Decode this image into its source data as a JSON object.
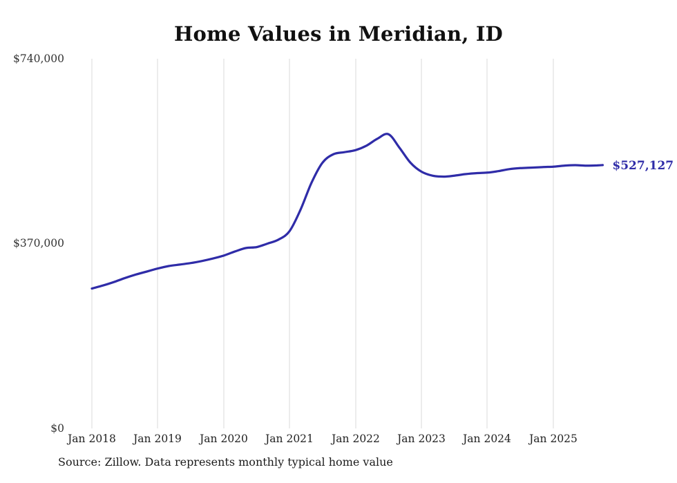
{
  "title": "Home Values in Meridian, ID",
  "source_note": "Source: Zillow. Data represents monthly typical home value",
  "end_label": "$527,127",
  "colors": {
    "line": "#2f2ca8",
    "end_label": "#2f2ca8",
    "grid": "#d8d8d8",
    "axis_text": "#333333",
    "title_text": "#111111"
  },
  "y_axis": {
    "ticks": [
      "$740,000",
      "$370,000",
      "$0"
    ],
    "tick_values": [
      740000,
      370000,
      0
    ]
  },
  "x_axis": {
    "ticks": [
      "Jan 2018",
      "Jan 2019",
      "Jan 2020",
      "Jan 2021",
      "Jan 2022",
      "Jan 2023",
      "Jan 2024",
      "Jan 2025"
    ]
  },
  "chart_data": {
    "type": "line",
    "title": "Home Values in Meridian, ID",
    "xlabel": "",
    "ylabel": "",
    "ylim": [
      0,
      740000
    ],
    "grid": "vertical",
    "legend": "none",
    "series_name": "Monthly typical home value",
    "x": [
      "2018-01",
      "2018-03",
      "2018-05",
      "2018-07",
      "2018-09",
      "2018-11",
      "2019-01",
      "2019-03",
      "2019-05",
      "2019-07",
      "2019-09",
      "2019-11",
      "2020-01",
      "2020-03",
      "2020-05",
      "2020-07",
      "2020-09",
      "2020-11",
      "2021-01",
      "2021-03",
      "2021-05",
      "2021-07",
      "2021-09",
      "2021-11",
      "2022-01",
      "2022-03",
      "2022-05",
      "2022-07",
      "2022-09",
      "2022-11",
      "2023-01",
      "2023-03",
      "2023-05",
      "2023-07",
      "2023-09",
      "2023-11",
      "2024-01",
      "2024-03",
      "2024-05",
      "2024-07",
      "2024-09",
      "2024-11",
      "2025-01",
      "2025-03",
      "2025-05",
      "2025-07",
      "2025-09",
      "2025-10"
    ],
    "values": [
      280000,
      286000,
      293000,
      301000,
      308000,
      314000,
      320000,
      325000,
      328000,
      331000,
      335000,
      340000,
      346000,
      354000,
      361000,
      363000,
      370000,
      378000,
      395000,
      438000,
      492000,
      532000,
      549000,
      553000,
      557000,
      566000,
      580000,
      589000,
      562000,
      532000,
      514000,
      506000,
      504000,
      506000,
      509000,
      511000,
      512000,
      515000,
      519000,
      521000,
      522000,
      523000,
      524000,
      526000,
      527000,
      526000,
      526500,
      527127
    ],
    "final_value": 527127,
    "final_value_label": "$527,127"
  }
}
